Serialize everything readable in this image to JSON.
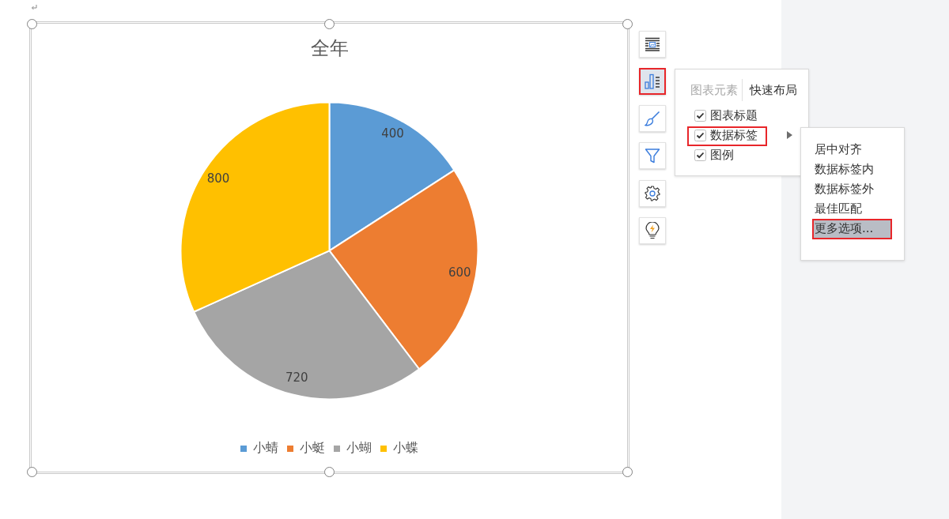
{
  "chart_data": [
    {
      "type": "pie",
      "title": "全年",
      "categories": [
        "小蜻",
        "小蜓",
        "小蝴",
        "小蝶"
      ],
      "values": [
        400,
        600,
        720,
        800
      ],
      "colors": [
        "#5b9bd5",
        "#ed7d31",
        "#a5a5a5",
        "#ffc000"
      ],
      "data_labels": true,
      "legend": "bottom"
    },
    {
      "type": "other",
      "annotations": [
        "图表元素",
        "快速布局",
        "图表标题",
        "数据标签",
        "图例",
        "居中对齐",
        "数据标签内",
        "数据标签外",
        "最佳匹配",
        "更多选项..."
      ]
    }
  ]
}
